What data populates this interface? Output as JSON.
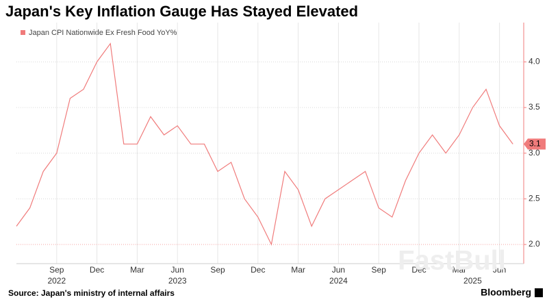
{
  "chart_data": {
    "type": "line",
    "title": "Japan's Key Inflation Gauge Has Stayed Elevated",
    "source": "Source: Japan's ministry of internal affairs",
    "brand": "Bloomberg",
    "watermark": "FastBull",
    "x": [
      "2022-06",
      "2022-07",
      "2022-08",
      "2022-09",
      "2022-10",
      "2022-11",
      "2022-12",
      "2023-01",
      "2023-02",
      "2023-03",
      "2023-04",
      "2023-05",
      "2023-06",
      "2023-07",
      "2023-08",
      "2023-09",
      "2023-10",
      "2023-11",
      "2023-12",
      "2024-01",
      "2024-02",
      "2024-03",
      "2024-04",
      "2024-05",
      "2024-06",
      "2024-07",
      "2024-08",
      "2024-09",
      "2024-10",
      "2024-11",
      "2024-12",
      "2025-01",
      "2025-02",
      "2025-03",
      "2025-04",
      "2025-05",
      "2025-06",
      "2025-07"
    ],
    "series": [
      {
        "name": "Japan CPI Nationwide Ex Fresh Food YoY%",
        "color": "#f07b7b",
        "values": [
          2.2,
          2.4,
          2.8,
          3.0,
          3.6,
          3.7,
          4.0,
          4.2,
          3.1,
          3.1,
          3.4,
          3.2,
          3.3,
          3.1,
          3.1,
          2.8,
          2.9,
          2.5,
          2.3,
          2.0,
          2.8,
          2.6,
          2.2,
          2.5,
          2.6,
          2.7,
          2.8,
          2.4,
          2.3,
          2.7,
          3.0,
          3.2,
          3.0,
          3.2,
          3.5,
          3.7,
          3.3,
          3.1
        ]
      }
    ],
    "xticks": [
      {
        "value": "2022-09",
        "label": "Sep"
      },
      {
        "value": "2022-12",
        "label": "Dec"
      },
      {
        "value": "2023-03",
        "label": "Mar"
      },
      {
        "value": "2023-06",
        "label": "Jun"
      },
      {
        "value": "2023-09",
        "label": "Sep"
      },
      {
        "value": "2023-12",
        "label": "Dec"
      },
      {
        "value": "2024-03",
        "label": "Mar"
      },
      {
        "value": "2024-06",
        "label": "Jun"
      },
      {
        "value": "2024-09",
        "label": "Sep"
      },
      {
        "value": "2024-12",
        "label": "Dec"
      },
      {
        "value": "2025-03",
        "label": "Mar"
      },
      {
        "value": "2025-06",
        "label": "Jun"
      }
    ],
    "xyears": [
      {
        "value": "2022-09",
        "label": "2022"
      },
      {
        "value": "2023-06",
        "label": "2023"
      },
      {
        "value": "2024-06",
        "label": "2024"
      },
      {
        "value": "2025-04",
        "label": "2025"
      }
    ],
    "ylim": [
      1.79,
      4.43
    ],
    "yticks": [
      {
        "value": 2,
        "label": "2.0"
      },
      2.5,
      {
        "value": 3,
        "label": "3.0"
      },
      3.5,
      {
        "value": 4,
        "label": "4.0"
      }
    ],
    "grid": true
  }
}
